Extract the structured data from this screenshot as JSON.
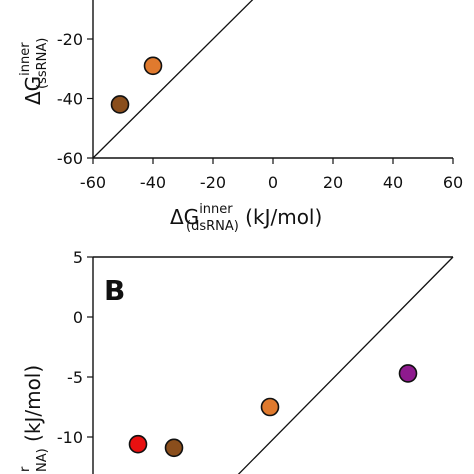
{
  "chart_data": [
    {
      "type": "scatter",
      "panel": "top",
      "xlim": [
        -60,
        60
      ],
      "ylim": [
        -60,
        0
      ],
      "x_ticks": [
        -60,
        -40,
        -20,
        0,
        20,
        40,
        60
      ],
      "y_ticks": [
        -20,
        -40,
        -60
      ],
      "x_tick_labels": [
        "-60",
        "-40",
        "-20",
        "0",
        "20",
        "40",
        "60"
      ],
      "y_tick_labels": [
        "-20",
        "-40",
        "-60"
      ],
      "xlabel": {
        "delta": "ΔG",
        "sup": "inner",
        "sub": "(dsRNA)",
        "unit": " (kJ/mol)"
      },
      "ylabel": {
        "delta": "ΔG",
        "sup": "inner",
        "sub": "(ssRNA)"
      },
      "diagonal": true,
      "points": [
        {
          "x": -40,
          "y": -29,
          "color": "#e07a2e"
        },
        {
          "x": -51,
          "y": -42,
          "color": "#8a4e1c"
        }
      ]
    },
    {
      "type": "scatter",
      "panel": "bottom",
      "label": "B",
      "ylim": [
        -15,
        5
      ],
      "y_ticks": [
        5,
        0,
        -5,
        -10
      ],
      "y_tick_labels": [
        "5",
        "0",
        "-5",
        "-10"
      ],
      "ylabel": {
        "sup": "r",
        "sub": "NA)",
        "unit": " (kJ/mol)"
      },
      "diagonal": true,
      "points": [
        {
          "x": -45,
          "y": -10.6,
          "color": "#e81010"
        },
        {
          "x": -33,
          "y": -10.9,
          "color": "#8a4e1c"
        },
        {
          "x": -1,
          "y": -7.5,
          "color": "#e07a2e"
        },
        {
          "x": 45,
          "y": -4.7,
          "color": "#8e1a8e"
        }
      ]
    }
  ]
}
